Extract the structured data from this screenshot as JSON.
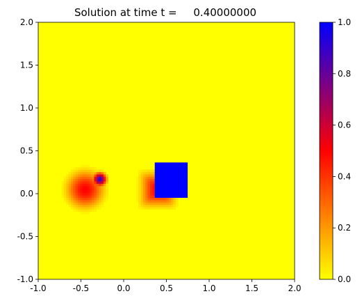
{
  "chart_data": {
    "type": "heatmap",
    "title": "Solution at time t =     0.40000000",
    "xlabel": "",
    "ylabel": "",
    "xlim": [
      -1.0,
      2.0
    ],
    "ylim": [
      -1.0,
      2.0
    ],
    "x_ticks": [
      "-1.0",
      "-0.5",
      "0.0",
      "0.5",
      "1.0",
      "1.5",
      "2.0"
    ],
    "y_ticks": [
      "-1.0",
      "-0.5",
      "0.0",
      "0.5",
      "1.0",
      "1.5",
      "2.0"
    ],
    "x_tick_values": [
      -1.0,
      -0.5,
      0.0,
      0.5,
      1.0,
      1.5,
      2.0
    ],
    "y_tick_values": [
      -1.0,
      -0.5,
      0.0,
      0.5,
      1.0,
      1.5,
      2.0
    ],
    "background_value": 0.0,
    "colormap": [
      "#ffff00",
      "#ff0000",
      "#0000ff"
    ],
    "colorbar": {
      "min": 0.0,
      "max": 1.0,
      "ticks": [
        "0.0",
        "0.2",
        "0.4",
        "0.6",
        "0.8",
        "1.0"
      ],
      "tick_values": [
        0.0,
        0.2,
        0.4,
        0.6,
        0.8,
        1.0
      ]
    },
    "features": [
      {
        "shape": "disc",
        "center": [
          -0.45,
          0.05
        ],
        "radius": 0.32,
        "peak_value": 0.5,
        "profile": "smooth"
      },
      {
        "shape": "disc",
        "center": [
          -0.28,
          0.17
        ],
        "radius": 0.12,
        "peak_value": 0.9,
        "profile": "smooth"
      },
      {
        "shape": "rounded-square",
        "center": [
          0.4,
          0.05
        ],
        "half_width": 0.28,
        "peak_value": 0.5,
        "profile": "smooth"
      },
      {
        "shape": "square",
        "center": [
          0.55,
          0.15
        ],
        "half_width": 0.2,
        "peak_value": 1.0,
        "profile": "flat"
      }
    ]
  }
}
